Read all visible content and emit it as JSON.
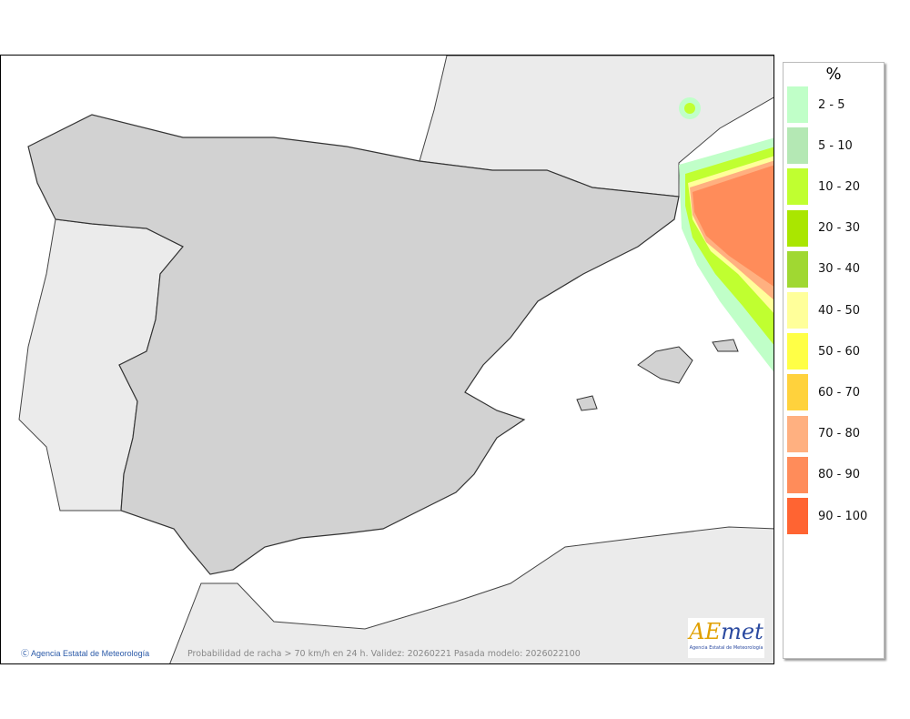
{
  "map": {
    "caption": "Probabilidad de racha > 70 km/h en 24 h. Validez: 20260221 Pasada modelo: 2026022100",
    "credit": "Agencia Estatal de Meteorología",
    "credit_icon": "copyright-icon",
    "logo": {
      "word": "AEMet",
      "subtitle": "Agencia Estatal de Meteorología"
    }
  },
  "legend": {
    "title": "%",
    "items": [
      {
        "label": "2 - 5",
        "color": "#c0ffc8"
      },
      {
        "label": "5 - 10",
        "color": "#b4e8b4"
      },
      {
        "label": "10 - 20",
        "color": "#c0ff30"
      },
      {
        "label": "20 - 30",
        "color": "#aae600"
      },
      {
        "label": "30 - 40",
        "color": "#a0d832"
      },
      {
        "label": "40 - 50",
        "color": "#ffff9a"
      },
      {
        "label": "50 - 60",
        "color": "#ffff46"
      },
      {
        "label": "60 - 70",
        "color": "#ffd23c"
      },
      {
        "label": "70 - 80",
        "color": "#ffb080"
      },
      {
        "label": "80 - 90",
        "color": "#ff8c5a"
      },
      {
        "label": "90 - 100",
        "color": "#ff6432"
      }
    ]
  }
}
